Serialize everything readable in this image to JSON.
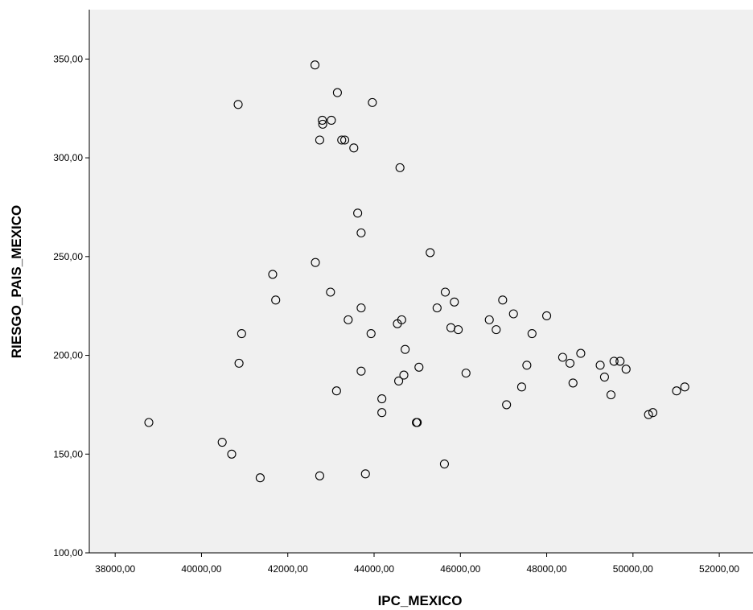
{
  "chart_data": {
    "type": "scatter",
    "xlabel": "IPC_MEXICO",
    "ylabel": "RIESGO_PAIS_MEXICO",
    "xlim": [
      37400,
      52800
    ],
    "ylim": [
      100,
      375
    ],
    "x_ticks": [
      38000,
      40000,
      42000,
      44000,
      46000,
      48000,
      50000,
      52000
    ],
    "x_tick_labels": [
      "38000,00",
      "40000,00",
      "42000,00",
      "44000,00",
      "46000,00",
      "48000,00",
      "50000,00",
      "52000,00"
    ],
    "y_ticks": [
      100,
      150,
      200,
      250,
      300,
      350
    ],
    "y_tick_labels": [
      "100,00",
      "150,00",
      "200,00",
      "250,00",
      "300,00",
      "350,00"
    ],
    "grid": false,
    "plot_background": "#f0f0f0",
    "marker": "hollow-circle",
    "marker_color": "#000000",
    "points": [
      [
        38780,
        166
      ],
      [
        40480,
        156
      ],
      [
        40700,
        150
      ],
      [
        40850,
        327
      ],
      [
        40870,
        196
      ],
      [
        40930,
        211
      ],
      [
        41360,
        138
      ],
      [
        41650,
        241
      ],
      [
        41720,
        228
      ],
      [
        42630,
        347
      ],
      [
        42640,
        247
      ],
      [
        42740,
        139
      ],
      [
        42740,
        309
      ],
      [
        42800,
        319
      ],
      [
        42810,
        317
      ],
      [
        42990,
        232
      ],
      [
        43010,
        319
      ],
      [
        43130,
        182
      ],
      [
        43150,
        333
      ],
      [
        43250,
        309
      ],
      [
        43320,
        309
      ],
      [
        43400,
        218
      ],
      [
        43530,
        305
      ],
      [
        43620,
        272
      ],
      [
        43700,
        262
      ],
      [
        43700,
        224
      ],
      [
        43700,
        192
      ],
      [
        43800,
        140
      ],
      [
        43930,
        211
      ],
      [
        43960,
        328
      ],
      [
        44180,
        178
      ],
      [
        44180,
        171
      ],
      [
        44540,
        216
      ],
      [
        44570,
        187
      ],
      [
        44600,
        295
      ],
      [
        44640,
        218
      ],
      [
        44690,
        190
      ],
      [
        44720,
        203
      ],
      [
        44980,
        166
      ],
      [
        45000,
        166
      ],
      [
        45040,
        194
      ],
      [
        45300,
        252
      ],
      [
        45460,
        224
      ],
      [
        45630,
        145
      ],
      [
        45650,
        232
      ],
      [
        45780,
        214
      ],
      [
        45860,
        227
      ],
      [
        45950,
        213
      ],
      [
        46130,
        191
      ],
      [
        46670,
        218
      ],
      [
        46830,
        213
      ],
      [
        46980,
        228
      ],
      [
        47070,
        175
      ],
      [
        47230,
        221
      ],
      [
        47420,
        184
      ],
      [
        47540,
        195
      ],
      [
        47660,
        211
      ],
      [
        48000,
        220
      ],
      [
        48370,
        199
      ],
      [
        48540,
        196
      ],
      [
        48610,
        186
      ],
      [
        48790,
        201
      ],
      [
        49240,
        195
      ],
      [
        49340,
        189
      ],
      [
        49490,
        180
      ],
      [
        49560,
        197
      ],
      [
        49700,
        197
      ],
      [
        49840,
        193
      ],
      [
        50360,
        170
      ],
      [
        50460,
        171
      ],
      [
        51010,
        182
      ],
      [
        51200,
        184
      ]
    ]
  }
}
